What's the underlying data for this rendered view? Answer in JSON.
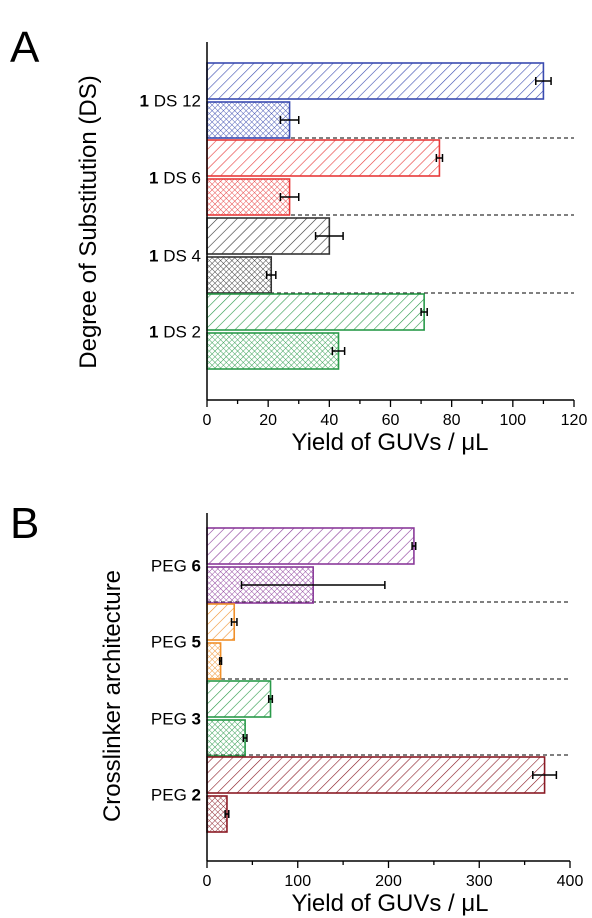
{
  "chart_data": [
    {
      "type": "bar",
      "orientation": "horizontal",
      "panel": "A",
      "title": "",
      "xlabel": "Yield of GUVs / μL",
      "ylabel": "Degree of Substitution (DS)",
      "xlim": [
        0,
        120
      ],
      "xticks": [
        0,
        20,
        40,
        60,
        80,
        100,
        120
      ],
      "grid": false,
      "categories": [
        {
          "bold": "1",
          "rest": " DS 12"
        },
        {
          "bold": "1",
          "rest": " DS 6"
        },
        {
          "bold": "1",
          "rest": " DS 4"
        },
        {
          "bold": "1",
          "rest": " DS 2"
        }
      ],
      "series": [
        {
          "pattern": "diagonal-hatch",
          "values": [
            110,
            76,
            40,
            71
          ],
          "errors": [
            2.5,
            1,
            4.5,
            1
          ]
        },
        {
          "pattern": "cross-hatch",
          "values": [
            27,
            27,
            21,
            43
          ],
          "errors": [
            3,
            3,
            1.5,
            2
          ]
        }
      ],
      "colors": [
        "#3a4bb0",
        "#e83a3a",
        "#333333",
        "#2a9a4a"
      ]
    },
    {
      "type": "bar",
      "orientation": "horizontal",
      "panel": "B",
      "title": "",
      "xlabel": "Yield of GUVs / μL",
      "ylabel": "Crosslinker architecture",
      "xlim": [
        0,
        400
      ],
      "xticks": [
        0,
        100,
        200,
        300,
        400
      ],
      "grid": false,
      "categories": [
        {
          "rest": "PEG ",
          "bold": "6"
        },
        {
          "rest": "PEG ",
          "bold": "5"
        },
        {
          "rest": "PEG ",
          "bold": "3"
        },
        {
          "rest": "PEG ",
          "bold": "2"
        }
      ],
      "series": [
        {
          "pattern": "diagonal-hatch",
          "values": [
            228,
            30,
            70,
            372
          ],
          "errors": [
            2,
            3,
            2,
            13
          ]
        },
        {
          "pattern": "cross-hatch",
          "values": [
            117,
            15,
            42,
            22
          ],
          "errors": [
            79,
            1,
            2,
            2
          ]
        }
      ],
      "colors": [
        "#8a3a9a",
        "#f0902a",
        "#2a9a4a",
        "#8a1a24"
      ]
    }
  ]
}
